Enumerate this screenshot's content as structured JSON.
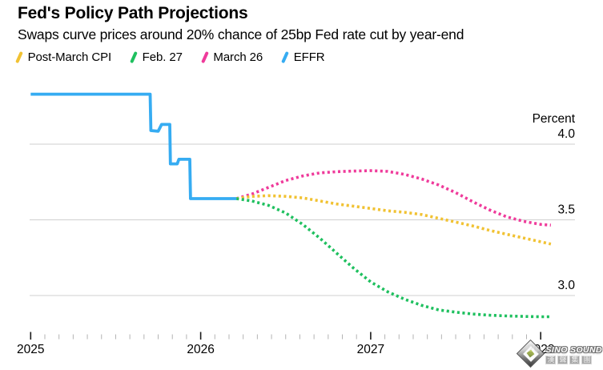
{
  "header": {
    "title": "Fed's Policy Path Projections",
    "subtitle": "Swaps curve prices around 20% chance of 25bp Fed rate cut by year-end"
  },
  "legend": [
    {
      "label": "Post-March CPI",
      "color": "#F1C233"
    },
    {
      "label": "Feb. 27",
      "color": "#1FC05F"
    },
    {
      "label": "March 26",
      "color": "#EF3B9B"
    },
    {
      "label": "EFFR",
      "color": "#36ACF2"
    }
  ],
  "watermark": {
    "brand": "SINO SOUND",
    "brand_cn": "漢聲集團"
  },
  "chart_data": {
    "type": "line",
    "title": "Fed's Policy Path Projections",
    "subtitle": "Swaps curve prices around 20% chance of 25bp Fed rate cut by year-end",
    "x_axis": {
      "ticks_major": [
        2025,
        2026,
        2027,
        2028
      ],
      "minor_tick_interval": "1 month",
      "range": [
        2025.0,
        2028.1
      ]
    },
    "y_axis": {
      "unit_label": "Percent",
      "gridlines": [
        4.0,
        3.5,
        3.0
      ],
      "range": [
        2.8,
        4.4
      ],
      "side": "right"
    },
    "grid": "horizontal-only",
    "legend_position": "top-left",
    "series": [
      {
        "name": "March 26",
        "style": "dotted",
        "color": "#EF3B9B",
        "points": [
          [
            2026.21,
            3.64
          ],
          [
            2026.3,
            3.67
          ],
          [
            2026.4,
            3.715
          ],
          [
            2026.5,
            3.76
          ],
          [
            2026.6,
            3.79
          ],
          [
            2026.7,
            3.81
          ],
          [
            2026.8,
            3.818
          ],
          [
            2026.9,
            3.822
          ],
          [
            2027.0,
            3.825
          ],
          [
            2027.1,
            3.82
          ],
          [
            2027.2,
            3.8
          ],
          [
            2027.3,
            3.77
          ],
          [
            2027.4,
            3.73
          ],
          [
            2027.5,
            3.68
          ],
          [
            2027.6,
            3.62
          ],
          [
            2027.7,
            3.565
          ],
          [
            2027.8,
            3.52
          ],
          [
            2027.9,
            3.49
          ],
          [
            2028.0,
            3.47
          ],
          [
            2028.06,
            3.465
          ]
        ]
      },
      {
        "name": "Post-March CPI",
        "style": "dotted",
        "color": "#F1C233",
        "points": [
          [
            2026.21,
            3.64
          ],
          [
            2026.3,
            3.655
          ],
          [
            2026.4,
            3.66
          ],
          [
            2026.5,
            3.655
          ],
          [
            2026.6,
            3.645
          ],
          [
            2026.7,
            3.625
          ],
          [
            2026.8,
            3.605
          ],
          [
            2026.9,
            3.59
          ],
          [
            2027.0,
            3.575
          ],
          [
            2027.1,
            3.56
          ],
          [
            2027.2,
            3.55
          ],
          [
            2027.3,
            3.535
          ],
          [
            2027.4,
            3.51
          ],
          [
            2027.5,
            3.485
          ],
          [
            2027.6,
            3.46
          ],
          [
            2027.7,
            3.43
          ],
          [
            2027.8,
            3.405
          ],
          [
            2027.9,
            3.38
          ],
          [
            2028.0,
            3.355
          ],
          [
            2028.06,
            3.34
          ]
        ]
      },
      {
        "name": "Feb. 27",
        "style": "dotted",
        "color": "#1FC05F",
        "points": [
          [
            2026.21,
            3.64
          ],
          [
            2026.3,
            3.625
          ],
          [
            2026.4,
            3.595
          ],
          [
            2026.5,
            3.545
          ],
          [
            2026.6,
            3.47
          ],
          [
            2026.7,
            3.38
          ],
          [
            2026.8,
            3.28
          ],
          [
            2026.9,
            3.18
          ],
          [
            2027.0,
            3.09
          ],
          [
            2027.1,
            3.025
          ],
          [
            2027.2,
            2.975
          ],
          [
            2027.3,
            2.935
          ],
          [
            2027.4,
            2.905
          ],
          [
            2027.5,
            2.89
          ],
          [
            2027.6,
            2.878
          ],
          [
            2027.7,
            2.87
          ],
          [
            2027.8,
            2.865
          ],
          [
            2027.9,
            2.862
          ],
          [
            2028.0,
            2.86
          ],
          [
            2028.06,
            2.86
          ]
        ]
      },
      {
        "name": "EFFR",
        "style": "solid",
        "color": "#36ACF2",
        "points": [
          [
            2025.0,
            4.33
          ],
          [
            2025.703,
            4.33
          ],
          [
            2025.707,
            4.09
          ],
          [
            2025.75,
            4.085
          ],
          [
            2025.77,
            4.13
          ],
          [
            2025.818,
            4.13
          ],
          [
            2025.822,
            3.87
          ],
          [
            2025.862,
            3.87
          ],
          [
            2025.872,
            3.9
          ],
          [
            2025.936,
            3.9
          ],
          [
            2025.94,
            3.64
          ],
          [
            2026.21,
            3.64
          ]
        ]
      }
    ]
  }
}
